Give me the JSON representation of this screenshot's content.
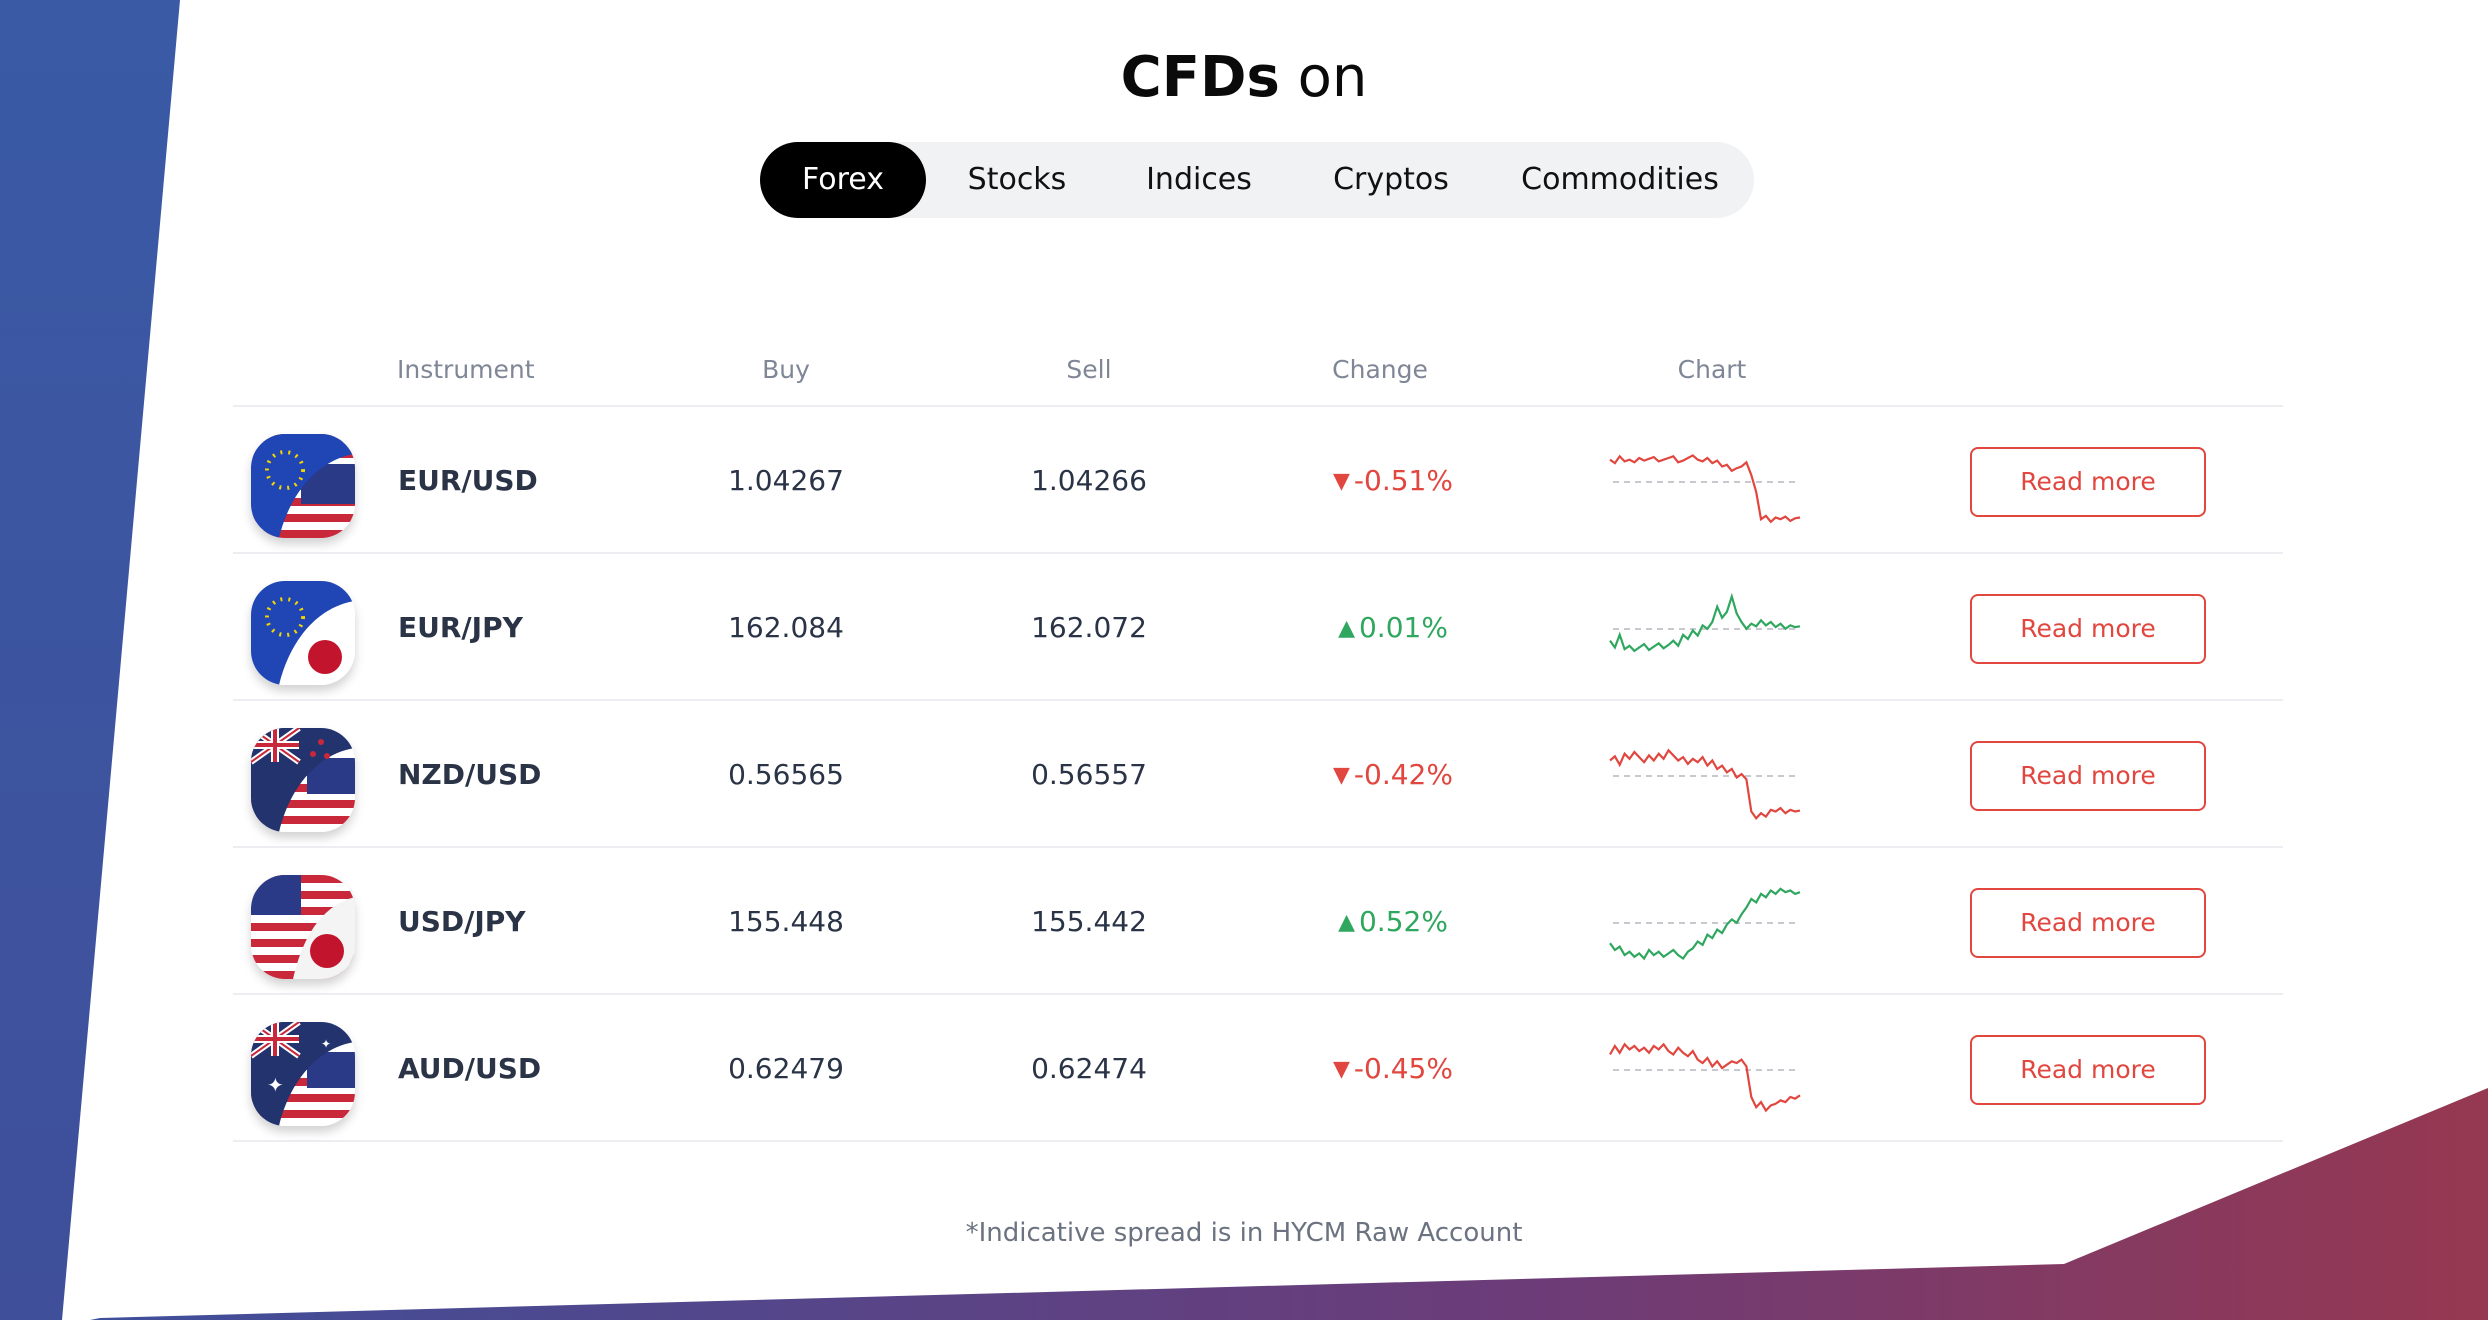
{
  "title": {
    "bold": "CFDs",
    "rest": "on"
  },
  "tabs": [
    {
      "label": "Forex",
      "active": true
    },
    {
      "label": "Stocks",
      "active": false
    },
    {
      "label": "Indices",
      "active": false
    },
    {
      "label": "Cryptos",
      "active": false
    },
    {
      "label": "Commodities",
      "active": false
    }
  ],
  "table": {
    "headers": {
      "instrument": "Instrument",
      "buy": "Buy",
      "sell": "Sell",
      "change": "Change",
      "chart": "Chart"
    },
    "rows": [
      {
        "instrument": "EUR/USD",
        "buy": "1.04267",
        "sell": "1.04266",
        "change": "-0.51%",
        "direction": "down",
        "flag_icon": "eur-usd-flag-icon",
        "action": "Read more",
        "spark": [
          22,
          26,
          18,
          24,
          22,
          25,
          20,
          23,
          21,
          19,
          24,
          22,
          20,
          18,
          25,
          23,
          20,
          17,
          22,
          24,
          20,
          26,
          23,
          30,
          28,
          35,
          32,
          30,
          25,
          40,
          60,
          92,
          88,
          95,
          90,
          92,
          89,
          94,
          91,
          90
        ]
      },
      {
        "instrument": "EUR/JPY",
        "buy": "162.084",
        "sell": "162.072",
        "change": "0.01%",
        "direction": "up",
        "flag_icon": "eur-jpy-flag-icon",
        "action": "Read more",
        "spark": [
          62,
          70,
          55,
          72,
          68,
          74,
          70,
          66,
          73,
          69,
          65,
          71,
          67,
          62,
          68,
          55,
          60,
          50,
          56,
          44,
          48,
          40,
          22,
          35,
          28,
          10,
          30,
          40,
          48,
          42,
          45,
          38,
          44,
          40,
          46,
          42,
          48,
          44,
          46,
          45
        ]
      },
      {
        "instrument": "NZD/USD",
        "buy": "0.56565",
        "sell": "0.56557",
        "change": "-0.42%",
        "direction": "down",
        "flag_icon": "nzd-usd-flag-icon",
        "action": "Read more",
        "spark": [
          30,
          25,
          35,
          22,
          28,
          20,
          26,
          32,
          24,
          30,
          22,
          28,
          18,
          24,
          30,
          26,
          34,
          28,
          32,
          26,
          36,
          30,
          40,
          36,
          44,
          40,
          50,
          46,
          52,
          90,
          98,
          92,
          96,
          88,
          90,
          86,
          92,
          88,
          90,
          89
        ]
      },
      {
        "instrument": "USD/JPY",
        "buy": "155.448",
        "sell": "155.442",
        "change": "0.52%",
        "direction": "up",
        "flag_icon": "usd-jpy-flag-icon",
        "action": "Read more",
        "spark": [
          72,
          80,
          76,
          86,
          82,
          88,
          84,
          90,
          80,
          86,
          82,
          88,
          84,
          80,
          86,
          90,
          82,
          78,
          70,
          74,
          62,
          66,
          56,
          60,
          50,
          44,
          48,
          38,
          30,
          20,
          24,
          14,
          18,
          10,
          14,
          8,
          12,
          10,
          14,
          12
        ]
      },
      {
        "instrument": "AUD/USD",
        "buy": "0.62479",
        "sell": "0.62474",
        "change": "-0.45%",
        "direction": "down",
        "flag_icon": "aud-usd-flag-icon",
        "action": "Read more",
        "spark": [
          30,
          20,
          28,
          18,
          24,
          20,
          26,
          22,
          28,
          20,
          24,
          18,
          26,
          30,
          22,
          28,
          32,
          26,
          36,
          40,
          34,
          44,
          38,
          46,
          42,
          38,
          40,
          36,
          44,
          80,
          92,
          86,
          96,
          90,
          88,
          84,
          86,
          80,
          82,
          78
        ]
      }
    ]
  },
  "footnote": "*Indicative spread is in HYCM Raw Account",
  "colors": {
    "down": "#e1463f",
    "up": "#2fa75e",
    "neutral_line": "#c7c9cf"
  }
}
